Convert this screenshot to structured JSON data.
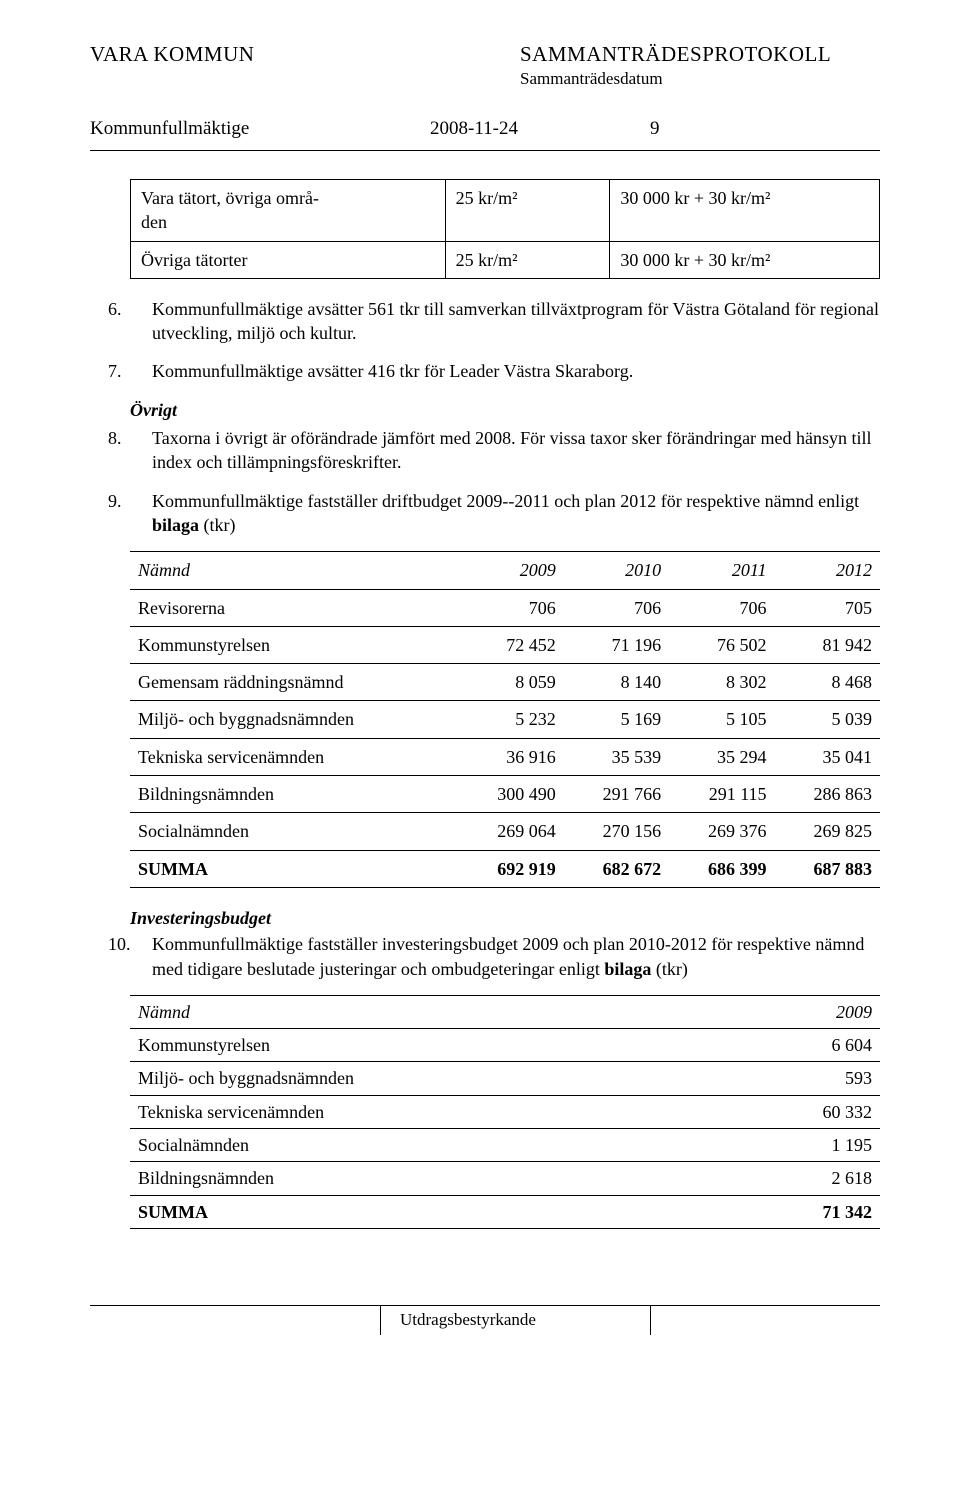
{
  "header": {
    "org": "VARA KOMMUN",
    "doc_type": "SAMMANTRÄDESPROTOKOLL",
    "sub": "Sammanträdesdatum"
  },
  "subhead": {
    "body": "Kommunfullmäktige",
    "date": "2008-11-24",
    "page": "9"
  },
  "table1": {
    "rows": [
      {
        "c1": "Vara tätort, övriga områ-\nden",
        "c2": "25 kr/m²",
        "c3": "30 000 kr + 30 kr/m²"
      },
      {
        "c1": "Övriga tätorter",
        "c2": "25 kr/m²",
        "c3": "30 000 kr + 30 kr/m²"
      }
    ]
  },
  "paras": {
    "p6": "Kommunfullmäktige avsätter 561 tkr till samverkan tillväxtprogram för Västra Götaland för regional utveckling, miljö och kultur.",
    "p7": "Kommunfullmäktige avsätter 416 tkr för Leader Västra Skaraborg.",
    "ovrigt": "Övrigt",
    "p8": "Taxorna i övrigt är oförändrade jämfört med 2008. För vissa taxor sker förändringar med hänsyn till index och tillämpningsföreskrifter.",
    "p9a": "Kommunfullmäktige fastställer driftbudget 2009--2011 och plan 2012 för respektive nämnd enligt ",
    "p9b": "bilaga",
    "p9c": " (tkr)",
    "inv_head": "Investeringsbudget",
    "p10a": "Kommunfullmäktige fastställer investeringsbudget 2009 och plan 2010-2012 för respektive nämnd med tidigare beslutade justeringar och ombudgeteringar enligt ",
    "p10b": "bilaga",
    "p10c": " (tkr)"
  },
  "budget": {
    "head_label": "Nämnd",
    "years": [
      "2009",
      "2010",
      "2011",
      "2012"
    ],
    "rows": [
      {
        "label": "Revisorerna",
        "vals": [
          "706",
          "706",
          "706",
          "705"
        ]
      },
      {
        "label": "Kommunstyrelsen",
        "vals": [
          "72 452",
          "71 196",
          "76 502",
          "81 942"
        ]
      },
      {
        "label": "Gemensam räddningsnämnd",
        "vals": [
          "8 059",
          "8 140",
          "8 302",
          "8 468"
        ]
      },
      {
        "label": "Miljö- och byggnadsnämnden",
        "vals": [
          "5 232",
          "5 169",
          "5 105",
          "5 039"
        ]
      },
      {
        "label": "Tekniska servicenämnden",
        "vals": [
          "36 916",
          "35 539",
          "35 294",
          "35 041"
        ]
      },
      {
        "label": "Bildningsnämnden",
        "vals": [
          "300 490",
          "291 766",
          "291 115",
          "286 863"
        ]
      },
      {
        "label": "Socialnämnden",
        "vals": [
          "269 064",
          "270 156",
          "269 376",
          "269 825"
        ]
      }
    ],
    "sum_label": "SUMMA",
    "sum_vals": [
      "692 919",
      "682 672",
      "686 399",
      "687 883"
    ]
  },
  "invest": {
    "head_label": "Nämnd",
    "year": "2009",
    "rows": [
      {
        "label": "Kommunstyrelsen",
        "val": "6 604"
      },
      {
        "label": "Miljö- och byggnadsnämnden",
        "val": "593"
      },
      {
        "label": "Tekniska servicenämnden",
        "val": "60 332"
      },
      {
        "label": "Socialnämnden",
        "val": "1 195"
      },
      {
        "label": "Bildningsnämnden",
        "val": "2 618"
      }
    ],
    "sum_label": "SUMMA",
    "sum_val": "71 342"
  },
  "footer": {
    "text": "Utdragsbestyrkande"
  }
}
